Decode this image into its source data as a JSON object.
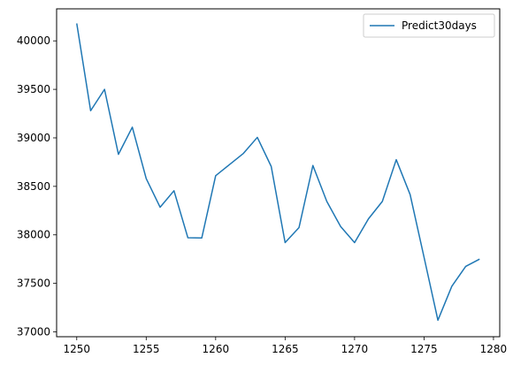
{
  "chart_data": {
    "type": "line",
    "title": "",
    "xlabel": "",
    "ylabel": "",
    "xlim": [
      1248.55,
      1280.45
    ],
    "ylim": [
      36950,
      40330
    ],
    "xticks": [
      1250,
      1255,
      1260,
      1265,
      1270,
      1275,
      1280
    ],
    "yticks": [
      37000,
      37500,
      38000,
      38500,
      39000,
      39500,
      40000
    ],
    "grid": false,
    "legend_position": "top-right",
    "series": [
      {
        "name": "Predict30days",
        "color": "#1f77b4",
        "x": [
          1250,
          1251,
          1252,
          1253,
          1254,
          1255,
          1256,
          1257,
          1258,
          1259,
          1260,
          1261,
          1262,
          1263,
          1264,
          1265,
          1266,
          1267,
          1268,
          1269,
          1270,
          1271,
          1272,
          1273,
          1274,
          1275,
          1276,
          1277,
          1278,
          1279
        ],
        "y": [
          40180,
          39280,
          39500,
          38830,
          39110,
          38580,
          38285,
          38455,
          37970,
          37968,
          38610,
          38725,
          38840,
          39005,
          38705,
          37920,
          38075,
          38715,
          38345,
          38085,
          37920,
          38165,
          38345,
          38775,
          38415,
          37770,
          37120,
          37470,
          37675,
          37750
        ]
      }
    ]
  }
}
